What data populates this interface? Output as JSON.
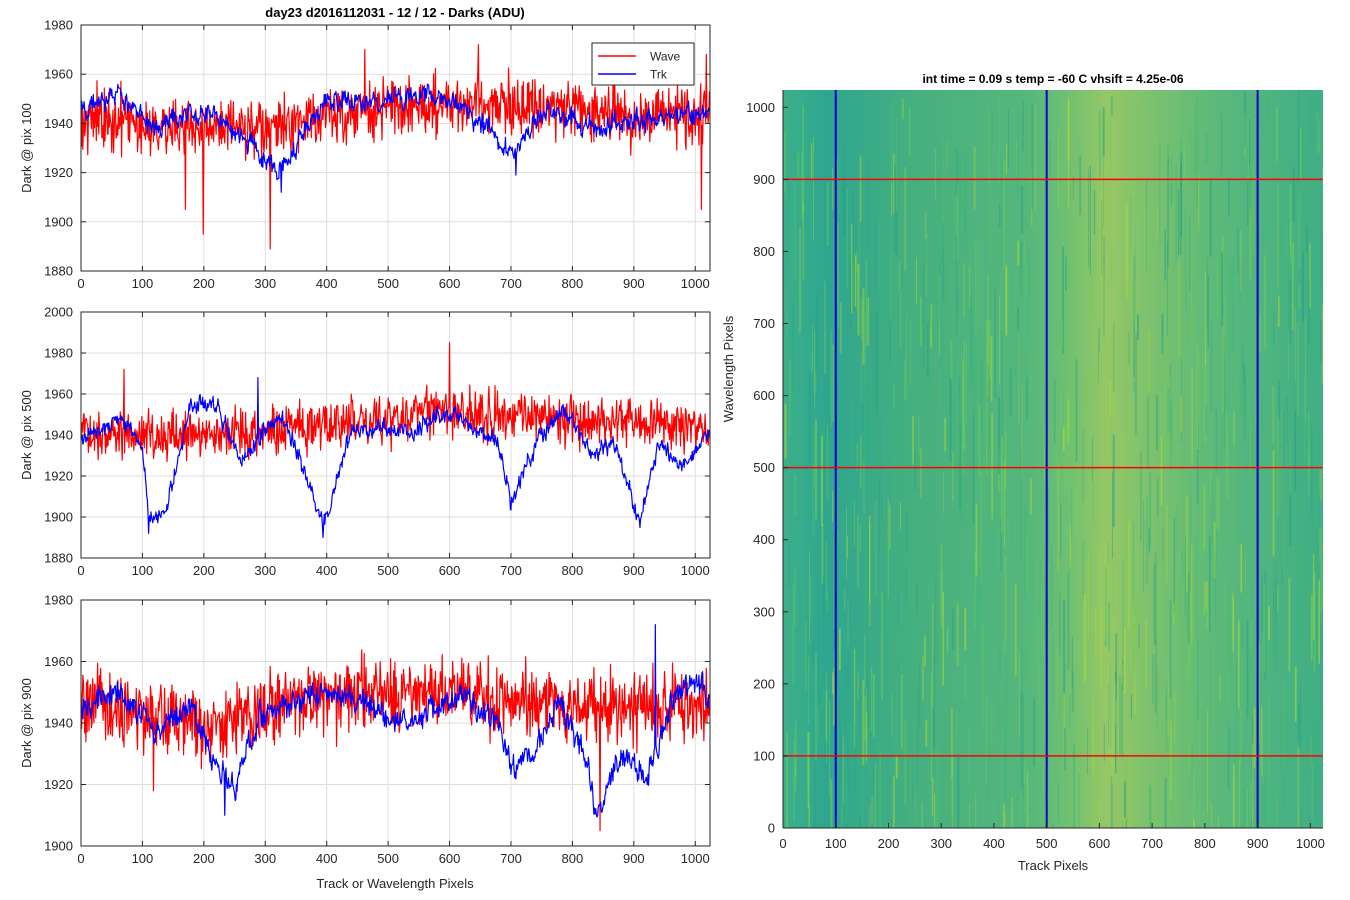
{
  "figure": {
    "title": "day23 d2016112031 - 12 / 12 - Darks (ADU)",
    "xlabel_shared": "Track or Wavelength Pixels"
  },
  "chart_data": [
    {
      "type": "line",
      "ylabel": "Dark @ pix 100",
      "xlim": [
        0,
        1024
      ],
      "ylim": [
        1880,
        1980
      ],
      "xticks": [
        0,
        100,
        200,
        300,
        400,
        500,
        600,
        700,
        800,
        900,
        1000
      ],
      "yticks": [
        1880,
        1900,
        1920,
        1940,
        1960,
        1980
      ],
      "grid": true,
      "legend": {
        "placement": "top-right",
        "entries": [
          "Wave",
          "Trk"
        ]
      },
      "series": [
        {
          "name": "Wave",
          "color": "#ff0000",
          "noise": 9,
          "trend_x": [
            0,
            100,
            200,
            300,
            400,
            500,
            600,
            700,
            800,
            900,
            1023
          ],
          "trend_y": [
            1942,
            1940,
            1938,
            1937,
            1943,
            1946,
            1948,
            1948,
            1946,
            1942,
            1944
          ],
          "spikes": [
            [
              199,
              1895
            ],
            [
              308,
              1889
            ],
            [
              1010,
              1905
            ],
            [
              170,
              1905
            ],
            [
              462,
              1970
            ],
            [
              647,
              1972
            ],
            [
              1018,
              1968
            ]
          ]
        },
        {
          "name": "Trk",
          "color": "#0000ff",
          "noise": 5,
          "trend_x": [
            0,
            60,
            120,
            180,
            240,
            280,
            320,
            400,
            460,
            520,
            560,
            620,
            700,
            760,
            840,
            900,
            1023
          ],
          "trend_y": [
            1945,
            1952,
            1938,
            1945,
            1940,
            1930,
            1920,
            1950,
            1948,
            1950,
            1952,
            1948,
            1928,
            1945,
            1938,
            1942,
            1944
          ],
          "spikes": [
            [
              326,
              1912
            ],
            [
              708,
              1919
            ]
          ]
        }
      ]
    },
    {
      "type": "line",
      "ylabel": "Dark @ pix 500",
      "xlim": [
        0,
        1024
      ],
      "ylim": [
        1880,
        2000
      ],
      "xticks": [
        0,
        100,
        200,
        300,
        400,
        500,
        600,
        700,
        800,
        900,
        1000
      ],
      "yticks": [
        1880,
        1900,
        1920,
        1940,
        1960,
        1980,
        2000
      ],
      "grid": true,
      "series": [
        {
          "name": "Wave",
          "color": "#ff0000",
          "noise": 9,
          "trend_x": [
            0,
            200,
            400,
            600,
            800,
            1023
          ],
          "trend_y": [
            1942,
            1940,
            1945,
            1952,
            1948,
            1943
          ],
          "spikes": [
            [
              600,
              1985
            ],
            [
              70,
              1972
            ]
          ]
        },
        {
          "name": "Trk",
          "color": "#0000ff",
          "noise": 5,
          "trend_x": [
            0,
            60,
            100,
            110,
            140,
            180,
            220,
            260,
            300,
            330,
            360,
            395,
            440,
            500,
            540,
            580,
            620,
            680,
            700,
            740,
            780,
            800,
            830,
            870,
            910,
            940,
            980,
            1023
          ],
          "trend_y": [
            1938,
            1948,
            1935,
            1900,
            1905,
            1955,
            1955,
            1928,
            1942,
            1948,
            1925,
            1895,
            1942,
            1945,
            1940,
            1950,
            1950,
            1935,
            1908,
            1935,
            1952,
            1950,
            1930,
            1935,
            1898,
            1935,
            1925,
            1942
          ],
          "spikes": [
            [
              110,
              1892
            ],
            [
              394,
              1890
            ],
            [
              288,
              1968
            ]
          ]
        }
      ]
    },
    {
      "type": "line",
      "ylabel": "Dark @ pix 900",
      "xlim": [
        0,
        1024
      ],
      "ylim": [
        1900,
        1980
      ],
      "xticks": [
        0,
        100,
        200,
        300,
        400,
        500,
        600,
        700,
        800,
        900,
        1000
      ],
      "yticks": [
        1900,
        1920,
        1940,
        1960,
        1980
      ],
      "grid": true,
      "series": [
        {
          "name": "Wave",
          "color": "#ff0000",
          "noise": 9,
          "trend_x": [
            0,
            200,
            400,
            600,
            800,
            1023
          ],
          "trend_y": [
            1945,
            1940,
            1948,
            1950,
            1945,
            1946
          ],
          "spikes": [
            [
              845,
              1905
            ],
            [
              118,
              1918
            ]
          ]
        },
        {
          "name": "Trk",
          "color": "#0000ff",
          "noise": 5,
          "trend_x": [
            0,
            60,
            120,
            180,
            220,
            250,
            290,
            330,
            380,
            420,
            460,
            500,
            540,
            580,
            620,
            680,
            700,
            740,
            780,
            820,
            840,
            880,
            920,
            960,
            1000,
            1023
          ],
          "trend_y": [
            1945,
            1950,
            1938,
            1945,
            1925,
            1918,
            1942,
            1945,
            1950,
            1950,
            1948,
            1940,
            1940,
            1945,
            1950,
            1940,
            1925,
            1930,
            1948,
            1930,
            1910,
            1930,
            1922,
            1945,
            1955,
            1950
          ],
          "spikes": [
            [
              935,
              1972
            ],
            [
              234,
              1910
            ]
          ]
        }
      ]
    },
    {
      "type": "heatmap",
      "title": "int time = 0.09 s    temp = -60 C    vhsift = 4.25e-06",
      "xlabel": "Track Pixels",
      "ylabel": "Wavelength Pixels",
      "xlim": [
        0,
        1024
      ],
      "ylim": [
        0,
        1024
      ],
      "xticks": [
        0,
        100,
        200,
        300,
        400,
        500,
        600,
        700,
        800,
        900,
        1000
      ],
      "yticks": [
        0,
        100,
        200,
        300,
        400,
        500,
        600,
        700,
        800,
        900,
        1000
      ],
      "colormap": [
        "#1f9e89",
        "#35b779",
        "#6ece58",
        "#b5de2b"
      ],
      "vertical_lines": {
        "x": [
          100,
          500,
          900
        ],
        "color": "#0000cc"
      },
      "horizontal_lines": {
        "y": [
          100,
          500,
          900
        ],
        "color": "#ff0000"
      }
    }
  ]
}
